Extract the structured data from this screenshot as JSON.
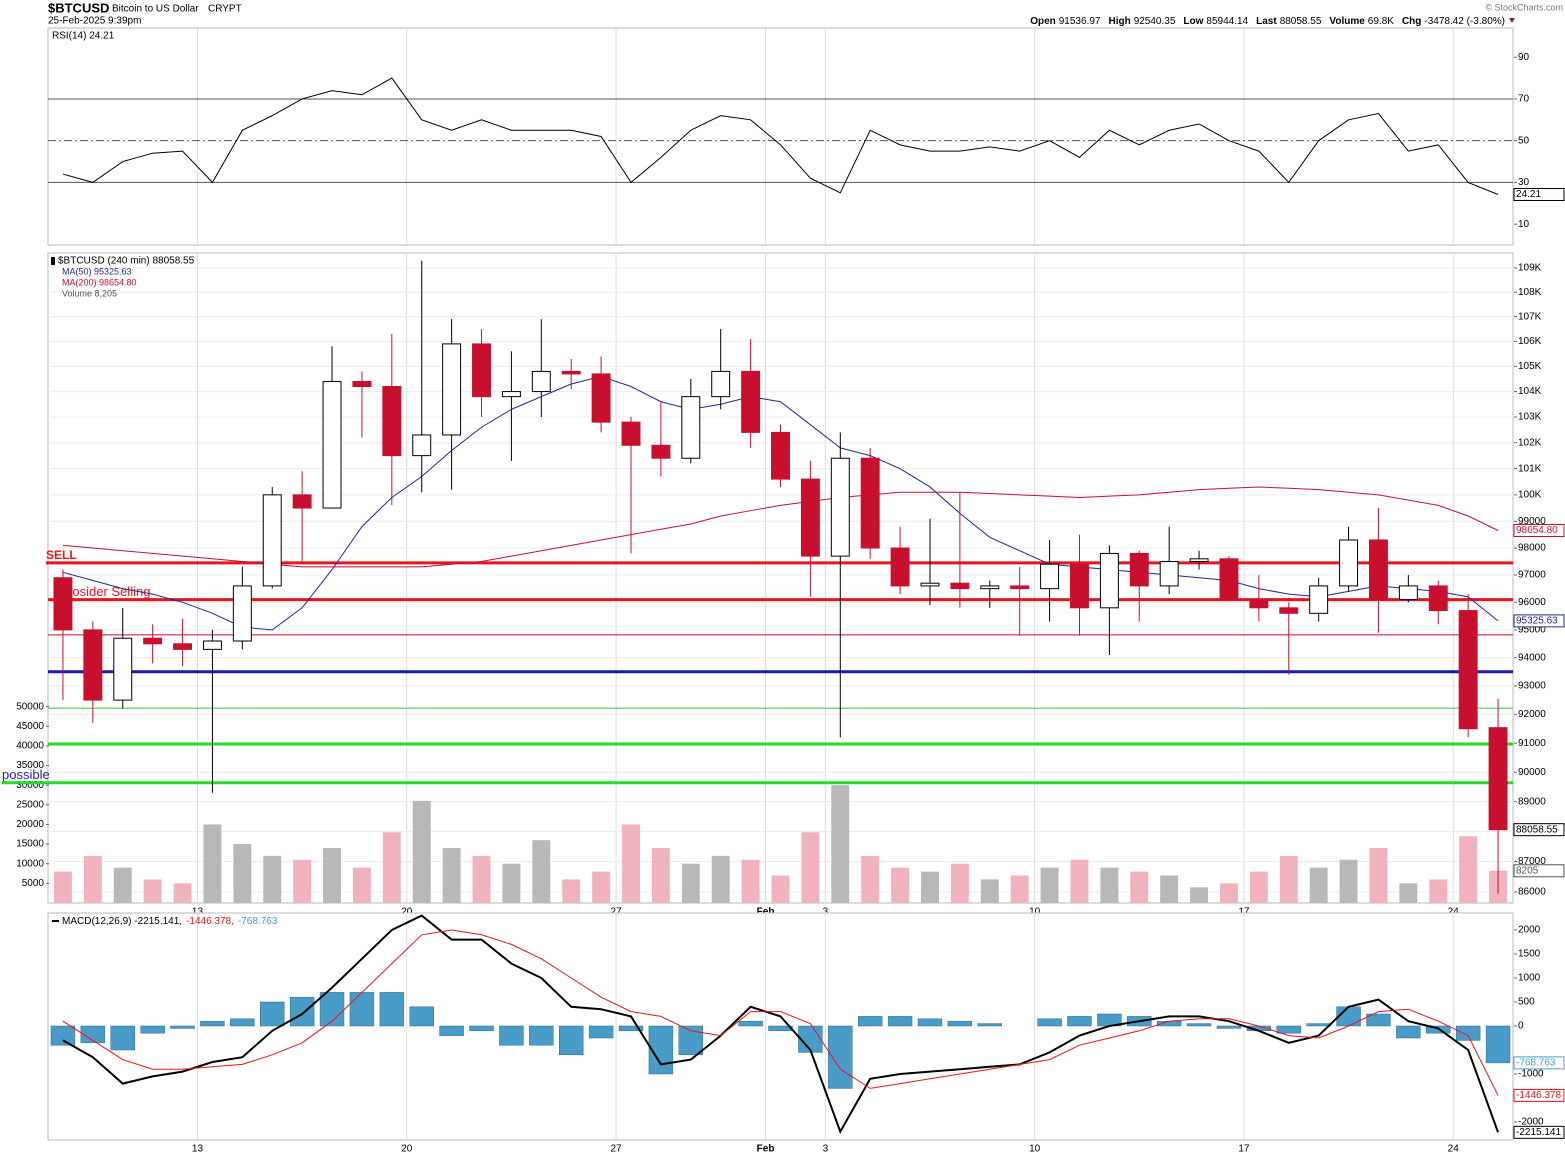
{
  "header": {
    "symbol": "$BTCUSD",
    "name": "Bitcoin to US Dollar",
    "exchange": "CRYPT",
    "date": "25-Feb-2025 9:39pm",
    "credit": "© StockCharts.com",
    "quote": [
      {
        "label": "Open",
        "value": "91536.97"
      },
      {
        "label": "High",
        "value": "92540.35"
      },
      {
        "label": "Low",
        "value": "85944.14"
      },
      {
        "label": "Last",
        "value": "88058.55"
      },
      {
        "label": "Volume",
        "value": "69.8K"
      },
      {
        "label": "Chg",
        "value": "-3478.42 (-3.80%)"
      }
    ]
  },
  "chart_data": [
    {
      "type": "line",
      "title": "RSI(14) 24.21",
      "categories": [
        null,
        null,
        null,
        null,
        null,
        "13",
        null,
        null,
        null,
        null,
        null,
        null,
        "20",
        null,
        null,
        null,
        null,
        null,
        null,
        "27",
        null,
        null,
        null,
        null,
        "Feb",
        null,
        "3",
        null,
        null,
        null,
        null,
        null,
        null,
        "10",
        null,
        null,
        null,
        null,
        null,
        null,
        "17",
        null,
        null,
        null,
        null,
        null,
        null,
        "24",
        null
      ],
      "series": [
        {
          "name": "RSI(14)",
          "color": "#000000",
          "values": [
            34,
            30,
            40,
            44,
            45,
            30,
            55,
            62,
            70,
            74,
            72,
            80,
            60,
            55,
            60,
            55,
            55,
            55,
            52,
            30,
            42,
            55,
            62,
            60,
            48,
            32,
            25,
            55,
            48,
            45,
            45,
            47,
            45,
            50,
            42,
            55,
            48,
            55,
            58,
            50,
            45,
            30,
            50,
            60,
            63,
            45,
            48,
            30,
            24.21
          ]
        }
      ],
      "ylim": [
        0,
        104
      ],
      "yticks": [
        10,
        30,
        50,
        70,
        90
      ],
      "ref_lines": [
        {
          "value": 70,
          "style": "solid"
        },
        {
          "value": 50,
          "style": "dashdot"
        },
        {
          "value": 30,
          "style": "solid"
        }
      ]
    },
    {
      "type": "candlestick",
      "title": "$BTCUSD (240 min) 88058.55",
      "categories": [
        null,
        null,
        null,
        null,
        null,
        "13",
        null,
        null,
        null,
        null,
        null,
        null,
        "20",
        null,
        null,
        null,
        null,
        null,
        null,
        "27",
        null,
        null,
        null,
        null,
        "Feb",
        null,
        "3",
        null,
        null,
        null,
        null,
        null,
        null,
        "10",
        null,
        null,
        null,
        null,
        null,
        null,
        "17",
        null,
        null,
        null,
        null,
        null,
        null,
        "24",
        null
      ],
      "open": [
        96900,
        95000,
        92500,
        94700,
        94500,
        94300,
        94600,
        96600,
        100000,
        99500,
        104400,
        104200,
        101500,
        102300,
        105900,
        103800,
        104000,
        104800,
        104700,
        102800,
        101900,
        101400,
        103800,
        104800,
        102400,
        100600,
        97700,
        101400,
        98000,
        96600,
        96700,
        96500,
        96600,
        96500,
        97400,
        95800,
        97800,
        96600,
        97500,
        97600,
        96100,
        95800,
        95600,
        96600,
        98300,
        96100,
        96600,
        95700,
        91536.97
      ],
      "high": [
        97200,
        95300,
        95800,
        95200,
        95400,
        95000,
        97300,
        100300,
        100900,
        105800,
        104800,
        106300,
        109300,
        106900,
        106500,
        105600,
        106900,
        105300,
        105400,
        103000,
        103600,
        104500,
        106500,
        106100,
        102700,
        101300,
        102400,
        101800,
        98800,
        99100,
        100100,
        96800,
        97300,
        98300,
        98500,
        98100,
        97900,
        98800,
        97900,
        97700,
        97000,
        96000,
        96900,
        98800,
        99500,
        97000,
        96800,
        96300,
        92540.35
      ],
      "low": [
        92500,
        91700,
        92200,
        93800,
        93700,
        89300,
        94300,
        96500,
        97400,
        99500,
        102200,
        99600,
        100100,
        100200,
        103000,
        101300,
        103000,
        104100,
        102400,
        97800,
        100700,
        101200,
        103300,
        101800,
        100300,
        96200,
        91200,
        97600,
        96300,
        95900,
        95800,
        95800,
        94800,
        95300,
        94800,
        94100,
        95300,
        96300,
        97200,
        96100,
        95300,
        93400,
        95300,
        96400,
        94900,
        96000,
        95200,
        91200,
        85944.14
      ],
      "close": [
        95000,
        92500,
        94700,
        94500,
        94300,
        94600,
        96600,
        100000,
        99500,
        104400,
        104200,
        101500,
        102300,
        105900,
        103800,
        104000,
        104800,
        104700,
        102800,
        101900,
        101400,
        103800,
        104800,
        102400,
        100600,
        97700,
        101400,
        98000,
        96600,
        96700,
        96500,
        96600,
        96500,
        97400,
        95800,
        97800,
        96600,
        97500,
        97600,
        96100,
        95800,
        95600,
        96600,
        98300,
        96100,
        96600,
        95700,
        91500,
        88058.55
      ],
      "up_color": "#000000",
      "down_color": "#c8102e",
      "series": [
        {
          "name": "MA(50) 95325.63",
          "color": "#1f2a8a",
          "values": [
            97100,
            96800,
            96500,
            96300,
            96000,
            95600,
            95100,
            95000,
            95800,
            97200,
            98800,
            99900,
            100700,
            101700,
            102600,
            103300,
            103800,
            104300,
            104600,
            104200,
            103600,
            103300,
            103500,
            103800,
            103600,
            102700,
            101800,
            101500,
            101000,
            100300,
            99300,
            98400,
            97900,
            97400,
            97300,
            97200,
            97100,
            97000,
            96900,
            96800,
            96500,
            96300,
            96200,
            96400,
            96600,
            96500,
            96400,
            96200,
            95325.63
          ]
        },
        {
          "name": "MA(200) 98654.80",
          "color": "#c8102e",
          "last_label": "98654.80",
          "values": [
            98100,
            98000,
            97900,
            97800,
            97700,
            97600,
            97500,
            97400,
            97300,
            97300,
            97300,
            97300,
            97300,
            97400,
            97500,
            97700,
            97900,
            98100,
            98300,
            98500,
            98700,
            98900,
            99200,
            99400,
            99600,
            99750,
            99900,
            100000,
            100100,
            100100,
            100100,
            100050,
            100000,
            99950,
            99900,
            99950,
            100000,
            100100,
            100200,
            100250,
            100300,
            100250,
            100200,
            100100,
            100000,
            99800,
            99600,
            99200,
            98654.8
          ]
        }
      ],
      "volume": {
        "name": "Volume 8,205",
        "up_color": "#b8b8b8",
        "down_color": "#f0b3bd",
        "ylim": [
          0,
          165500
        ],
        "yticks": [
          5000,
          10000,
          15000,
          20000,
          25000,
          30000,
          35000,
          40000,
          45000,
          50000
        ],
        "values": [
          8000,
          12000,
          9000,
          6000,
          5000,
          20000,
          15000,
          12000,
          11000,
          14000,
          9000,
          18000,
          26000,
          14000,
          12000,
          10000,
          16000,
          6000,
          8000,
          20000,
          14000,
          10000,
          12000,
          11000,
          7000,
          18000,
          30000,
          12000,
          9000,
          8000,
          10000,
          6000,
          7000,
          9000,
          11000,
          9000,
          8000,
          7000,
          4000,
          5000,
          8000,
          12000,
          9000,
          11000,
          14000,
          5000,
          6000,
          17000,
          8205
        ]
      },
      "log_scale": true,
      "ylim": [
        85640,
        109620
      ],
      "yticks": [
        86000,
        87000,
        88000,
        89000,
        90000,
        91000,
        92000,
        93000,
        94000,
        95000,
        96000,
        97000,
        98000,
        99000,
        {
          "value": 100000,
          "label": "100K"
        },
        {
          "value": 101000,
          "label": "101K"
        },
        {
          "value": 102000,
          "label": "102K"
        },
        {
          "value": 103000,
          "label": "103K"
        },
        {
          "value": 104000,
          "label": "104K"
        },
        {
          "value": 105000,
          "label": "105K"
        },
        {
          "value": 106000,
          "label": "106K"
        },
        {
          "value": 107000,
          "label": "107K"
        },
        {
          "value": 108000,
          "label": "108K"
        },
        {
          "value": 109000,
          "label": "109K"
        }
      ],
      "grid": true,
      "lines": [
        {
          "value": 97450,
          "color": "#e8141c",
          "style": "thick",
          "label": "SELL"
        },
        {
          "value": 96100,
          "color": "#e8141c",
          "style": "thick",
          "label": "Cosider Selling"
        },
        {
          "value": 94820,
          "color": "#c8102e",
          "style": "thin"
        },
        {
          "value": 93500,
          "color": "#1a1ab0",
          "style": "thick"
        },
        {
          "value": 92220,
          "color": "#33cc33",
          "style": "thin"
        },
        {
          "value": 90970,
          "color": "#22dd22",
          "style": "thick"
        },
        {
          "value": 89640,
          "color": "#22dd22",
          "style": "thick",
          "label": "possible",
          "label_color": "#2222aa"
        }
      ]
    },
    {
      "type": "macd",
      "categories": [
        null,
        null,
        null,
        null,
        null,
        "13",
        null,
        null,
        null,
        null,
        null,
        null,
        "20",
        null,
        null,
        null,
        null,
        null,
        null,
        "27",
        null,
        null,
        null,
        null,
        "Feb",
        null,
        "3",
        null,
        null,
        null,
        null,
        null,
        null,
        "10",
        null,
        null,
        null,
        null,
        null,
        null,
        "17",
        null,
        null,
        null,
        null,
        null,
        null,
        "24",
        null
      ],
      "series": [
        {
          "name": "MACD(12,26,9) -2215.141,",
          "type": "line",
          "color": "#000000",
          "values": [
            -300,
            -650,
            -1200,
            -1050,
            -950,
            -750,
            -650,
            -100,
            250,
            800,
            1400,
            2000,
            2300,
            1800,
            1800,
            1300,
            1000,
            400,
            350,
            200,
            -800,
            -700,
            -200,
            400,
            200,
            -500,
            -2200,
            -1100,
            -1000,
            -950,
            -900,
            -850,
            -800,
            -550,
            -200,
            0,
            100,
            200,
            200,
            100,
            -100,
            -350,
            -200,
            400,
            550,
            100,
            -50,
            -500,
            -2215.141
          ]
        },
        {
          "name": "-1446.378,",
          "type": "line",
          "color": "#e8141c",
          "values": [
            100,
            -300,
            -700,
            -900,
            -900,
            -850,
            -800,
            -600,
            -350,
            100,
            700,
            1300,
            1900,
            2000,
            1900,
            1700,
            1400,
            1000,
            600,
            300,
            200,
            -100,
            -200,
            300,
            300,
            50,
            -900,
            -1300,
            -1200,
            -1100,
            -1000,
            -900,
            -800,
            -700,
            -400,
            -250,
            -100,
            100,
            150,
            150,
            0,
            -200,
            -250,
            0,
            300,
            350,
            100,
            -200,
            -1446.378
          ]
        },
        {
          "name": "-768.763",
          "type": "bar",
          "color": "#4a9cc8",
          "values": [
            -400,
            -350,
            -500,
            -150,
            -50,
            100,
            150,
            500,
            600,
            700,
            700,
            700,
            400,
            -200,
            -100,
            -400,
            -400,
            -600,
            -250,
            -100,
            -1000,
            -600,
            0,
            100,
            -100,
            -550,
            -1300,
            200,
            200,
            150,
            100,
            50,
            0,
            150,
            200,
            250,
            200,
            100,
            50,
            -50,
            -100,
            -150,
            50,
            400,
            250,
            -250,
            -150,
            -300,
            -768.763
          ]
        }
      ],
      "ylim": [
        -2375,
        2354
      ],
      "yticks": [
        -2000,
        -1000,
        0,
        500,
        1000,
        1500,
        2000
      ]
    }
  ]
}
